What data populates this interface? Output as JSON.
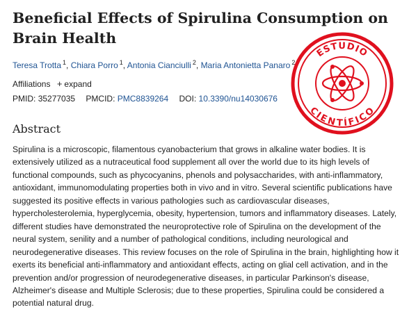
{
  "article": {
    "title": "Beneficial Effects of Spirulina Consumption on Brain Health",
    "authors": [
      {
        "name": "Teresa Trotta",
        "affiliation": "1"
      },
      {
        "name": "Chiara Porro",
        "affiliation": "1"
      },
      {
        "name": "Antonia Cianciulli",
        "affiliation": "2"
      },
      {
        "name": "Maria Antonietta Panaro",
        "affiliation": "2"
      }
    ],
    "author_separator": ",",
    "affiliations_label": "Affiliations",
    "expand_label": "expand",
    "pmid_label": "PMID:",
    "pmid": "35277035",
    "pmcid_label": "PMCID:",
    "pmcid": "PMC8839264",
    "doi_label": "DOI:",
    "doi": "10.3390/nu14030676",
    "abstract_heading": "Abstract",
    "abstract_text": "Spirulina is a microscopic, filamentous cyanobacterium that grows in alkaline water bodies. It is extensively utilized as a nutraceutical food supplement all over the world due to its high levels of functional compounds, such as phycocyanins, phenols and polysaccharides, with anti-inflammatory, antioxidant, immunomodulating properties both in vivo and in vitro. Several scientific publications have suggested its positive effects in various pathologies such as cardiovascular diseases, hypercholesterolemia, hyperglycemia, obesity, hypertension, tumors and inflammatory diseases. Lately, different studies have demonstrated the neuroprotective role of Spirulina on the development of the neural system, senility and a number of pathological conditions, including neurological and neurodegenerative diseases. This review focuses on the role of Spirulina in the brain, highlighting how it exerts its beneficial anti-inflammatory and antioxidant effects, acting on glial cell activation, and in the prevention and/or progression of neurodegenerative diseases, in particular Parkinson's disease, Alzheimer's disease and Multiple Sclerosis; due to these properties, Spirulina could be considered a potential natural drug."
  },
  "stamp": {
    "top_text": "ESTUDIO",
    "bottom_text": "CIENTÍFICO",
    "color": "#e0101e",
    "icon": "atom-icon"
  },
  "colors": {
    "link": "#205493",
    "text": "#212121"
  }
}
